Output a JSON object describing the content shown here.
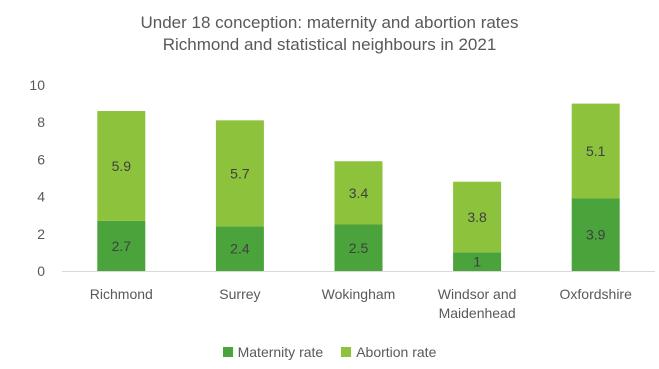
{
  "chart_data": {
    "type": "bar",
    "stacked": true,
    "title": "Under 18 conception: maternity and abortion rates",
    "subtitle": "Richmond and statistical neighbours in 2021",
    "categories": [
      "Richmond",
      "Surrey",
      "Wokingham",
      "Windsor and Maidenhead",
      "Oxfordshire"
    ],
    "category_lines": [
      [
        "Richmond"
      ],
      [
        "Surrey"
      ],
      [
        "Wokingham"
      ],
      [
        "Windsor and",
        "Maidenhead"
      ],
      [
        "Oxfordshire"
      ]
    ],
    "series": [
      {
        "name": "Maternity rate",
        "values": [
          2.7,
          2.4,
          2.5,
          1,
          3.9
        ],
        "color": "#4aa33b"
      },
      {
        "name": "Abortion rate",
        "values": [
          5.9,
          5.7,
          3.4,
          3.8,
          5.1
        ],
        "color": "#8dc23d"
      }
    ],
    "ylim": [
      0,
      10
    ],
    "yticks": [
      "0",
      "2",
      "4",
      "6",
      "8",
      "10"
    ],
    "grid": false,
    "legend_position": "bottom"
  }
}
